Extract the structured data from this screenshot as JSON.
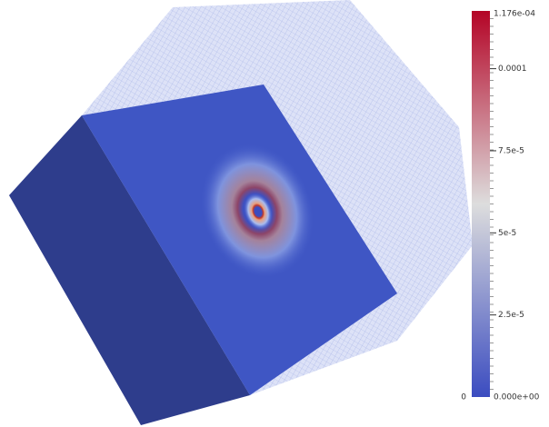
{
  "colorbar": {
    "range": [
      0,
      0.0001176
    ],
    "max_label": "1.176e-04",
    "min_label": "0.000e+00",
    "side_label": "0",
    "ticks": [
      {
        "value": 0.0001,
        "label": "0.0001"
      },
      {
        "value": 7.5e-05,
        "label": "7.5e-5"
      },
      {
        "value": 5e-05,
        "label": "5e-5"
      },
      {
        "value": 2.5e-05,
        "label": "2.5e-5"
      }
    ]
  }
}
